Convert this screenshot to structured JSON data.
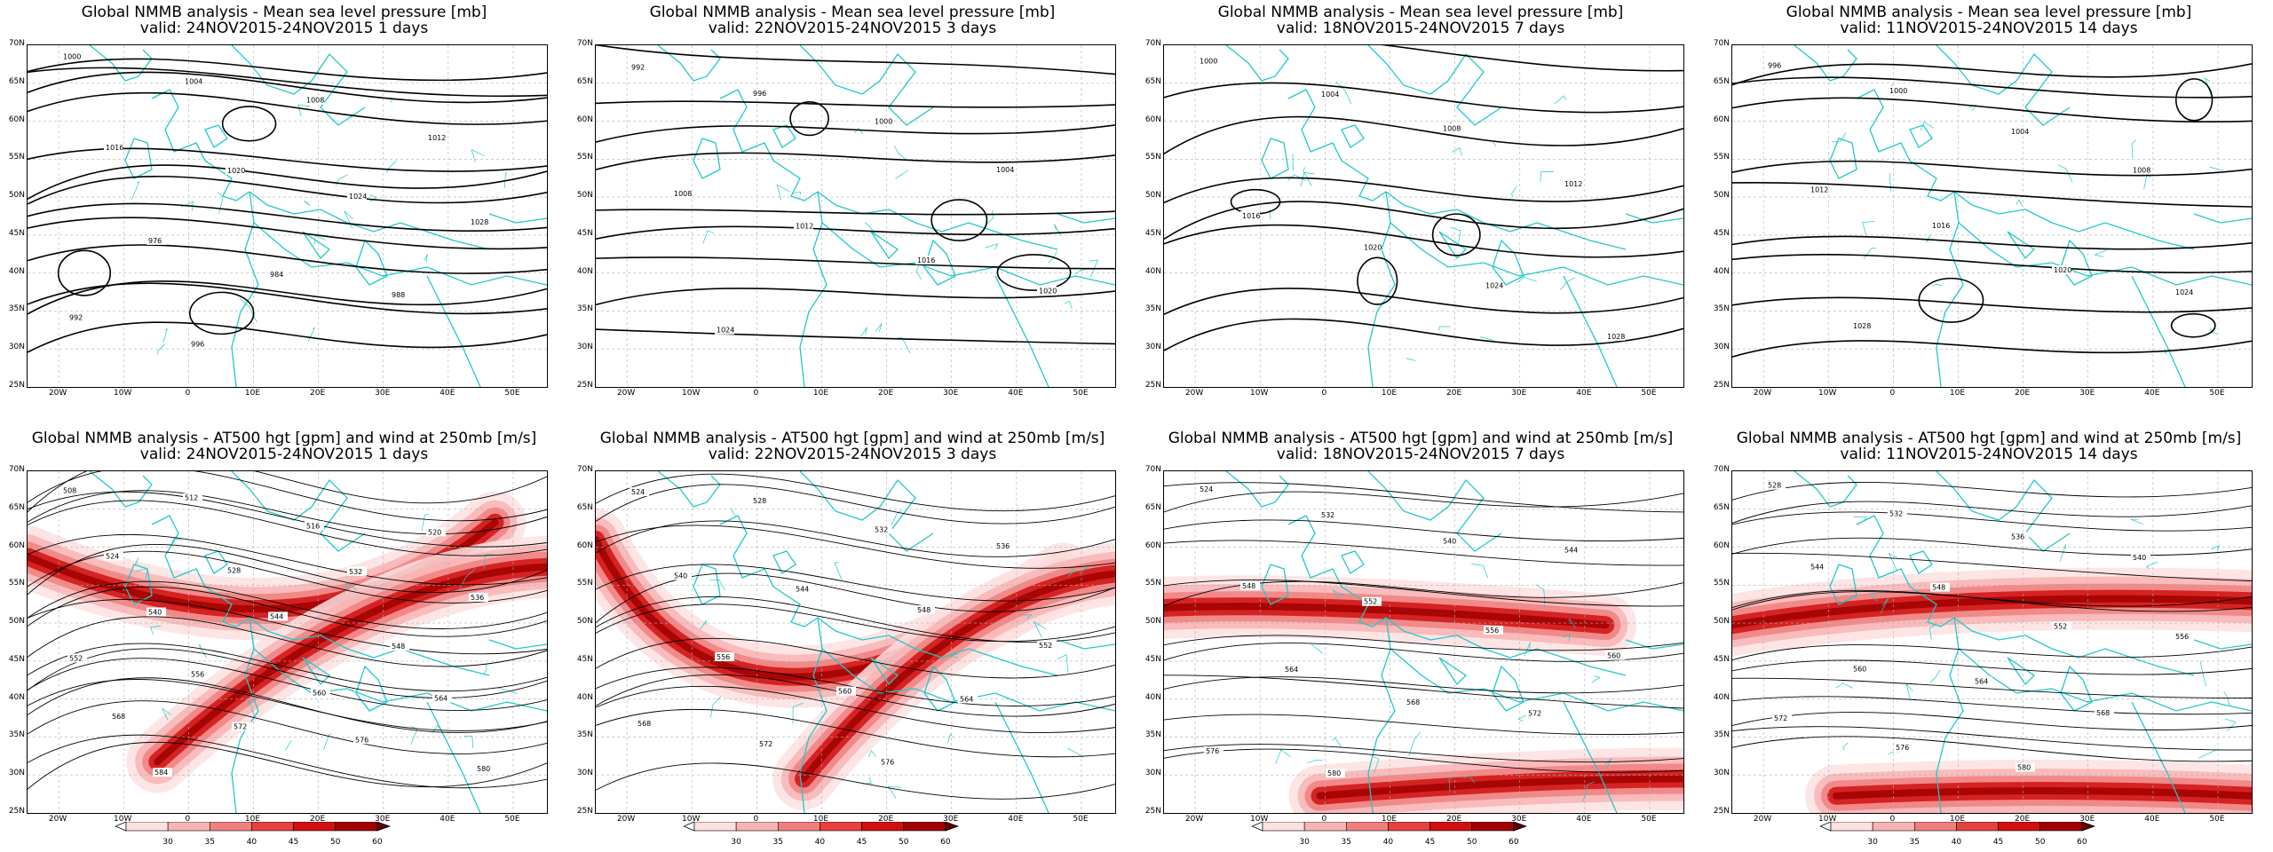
{
  "panels": [
    {
      "title": "Global NMMB analysis - Mean sea level pressure [mb]",
      "subtitle": "valid: 24NOV2015-24NOV2015   1 days",
      "kind": "mslp",
      "contour_labels": [
        "1000",
        "1004",
        "1008",
        "1012",
        "1016",
        "1020",
        "1024",
        "1028",
        "976",
        "984",
        "988",
        "992",
        "996"
      ]
    },
    {
      "title": "Global NMMB analysis - Mean sea level pressure [mb]",
      "subtitle": "valid: 22NOV2015-24NOV2015   3 days",
      "kind": "mslp",
      "contour_labels": [
        "992",
        "996",
        "1000",
        "1004",
        "1008",
        "1012",
        "1016",
        "1020",
        "1024"
      ]
    },
    {
      "title": "Global NMMB analysis - Mean sea level pressure [mb]",
      "subtitle": "valid: 18NOV2015-24NOV2015   7 days",
      "kind": "mslp",
      "contour_labels": [
        "1000",
        "1004",
        "1008",
        "1012",
        "1016",
        "1020",
        "1024",
        "1028"
      ]
    },
    {
      "title": "Global NMMB analysis - Mean sea level pressure [mb]",
      "subtitle": "valid: 11NOV2015-24NOV2015   14 days",
      "kind": "mslp",
      "contour_labels": [
        "996",
        "1000",
        "1004",
        "1008",
        "1012",
        "1016",
        "1020",
        "1024",
        "1028"
      ]
    },
    {
      "title": "Global NMMB analysis - AT500 hgt [gpm] and wind at 250mb [m/s]",
      "subtitle": "valid: 24NOV2015-24NOV2015   1 days",
      "kind": "z500",
      "contour_labels": [
        "508",
        "512",
        "516",
        "520",
        "524",
        "528",
        "532",
        "536",
        "540",
        "544",
        "548",
        "552",
        "556",
        "560",
        "564",
        "568",
        "572",
        "576",
        "580",
        "584"
      ]
    },
    {
      "title": "Global NMMB analysis - AT500 hgt [gpm] and wind at 250mb [m/s]",
      "subtitle": "valid: 22NOV2015-24NOV2015   3 days",
      "kind": "z500",
      "contour_labels": [
        "524",
        "528",
        "532",
        "536",
        "540",
        "544",
        "548",
        "552",
        "556",
        "560",
        "564",
        "568",
        "572",
        "576"
      ]
    },
    {
      "title": "Global NMMB analysis - AT500 hgt [gpm] and wind at 250mb [m/s]",
      "subtitle": "valid: 18NOV2015-24NOV2015   7 days",
      "kind": "z500",
      "contour_labels": [
        "524",
        "532",
        "540",
        "544",
        "548",
        "552",
        "556",
        "560",
        "564",
        "568",
        "572",
        "576",
        "580"
      ]
    },
    {
      "title": "Global NMMB analysis - AT500 hgt [gpm] and wind at 250mb [m/s]",
      "subtitle": "valid: 11NOV2015-24NOV2015   14 days",
      "kind": "z500",
      "contour_labels": [
        "528",
        "532",
        "536",
        "540",
        "544",
        "548",
        "552",
        "556",
        "560",
        "564",
        "568",
        "572",
        "576",
        "580"
      ]
    }
  ],
  "lat_labels": [
    "70N",
    "65N",
    "60N",
    "55N",
    "50N",
    "45N",
    "40N",
    "35N",
    "30N",
    "25N"
  ],
  "lon_labels": [
    "20W",
    "10W",
    "0",
    "10E",
    "20E",
    "30E",
    "40E",
    "50E"
  ],
  "colorbar": {
    "ticks": [
      "30",
      "35",
      "40",
      "45",
      "50",
      "60"
    ],
    "colors": [
      "#ffffff",
      "#fde0e0",
      "#f8b4b4",
      "#f08080",
      "#e84040",
      "#d01010",
      "#a00000",
      "#600000"
    ],
    "units": "m/s"
  },
  "colors": {
    "coastline": "#22c8c8",
    "contour": "#000000",
    "grid": "#b0b0b0"
  }
}
